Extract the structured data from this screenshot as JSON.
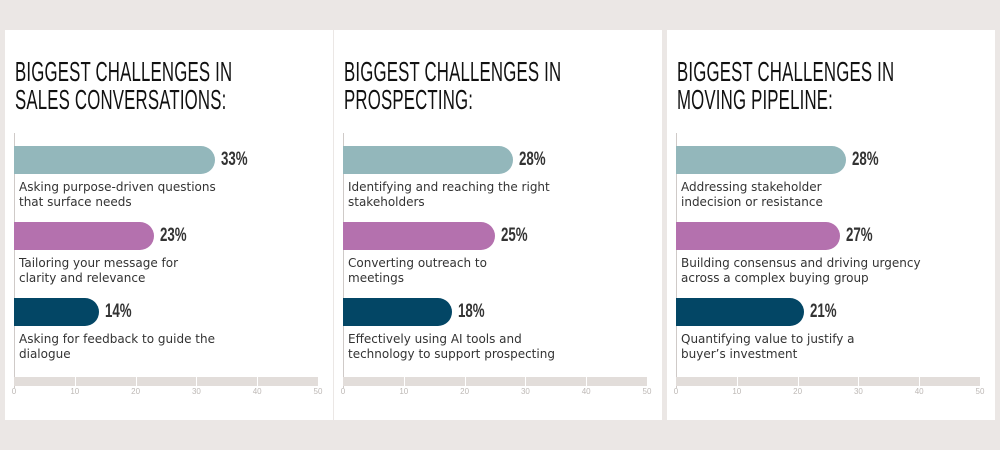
{
  "colors": {
    "background": "#ebe7e5",
    "panel": "#ffffff",
    "series": [
      "#93b7bb",
      "#b471ae",
      "#034665"
    ]
  },
  "chart_data": [
    {
      "type": "bar",
      "orientation": "horizontal",
      "title": [
        "BIGGEST CHALLENGES IN",
        "SALES CONVERSATIONS:"
      ],
      "categories": [
        "Asking purpose-driven questions that surface needs",
        "Tailoring your message for clarity and relevance",
        "Asking for feedback to guide the dialogue"
      ],
      "values": [
        33,
        23,
        14
      ],
      "data_labels": [
        "33%",
        "23%",
        "14%"
      ],
      "xlim": [
        0,
        50
      ],
      "xticks": [
        "0",
        "10",
        "20",
        "30",
        "40",
        "50"
      ]
    },
    {
      "type": "bar",
      "orientation": "horizontal",
      "title": [
        "BIGGEST CHALLENGES IN",
        "PROSPECTING:"
      ],
      "categories": [
        "Identifying and reaching the right stakeholders",
        "Converting outreach to meetings",
        "Effectively using AI tools and technology to support prospecting"
      ],
      "values": [
        28,
        25,
        18
      ],
      "data_labels": [
        "28%",
        "25%",
        "18%"
      ],
      "xlim": [
        0,
        50
      ],
      "xticks": [
        "0",
        "10",
        "20",
        "30",
        "40",
        "50"
      ]
    },
    {
      "type": "bar",
      "orientation": "horizontal",
      "title": [
        "BIGGEST CHALLENGES IN",
        "MOVING PIPELINE:"
      ],
      "categories": [
        "Addressing stakeholder indecision or resistance",
        "Building consensus and driving urgency across a complex buying group",
        "Quantifying value to justify a buyer’s investment"
      ],
      "values": [
        28,
        27,
        21
      ],
      "data_labels": [
        "28%",
        "27%",
        "21%"
      ],
      "xlim": [
        0,
        50
      ],
      "xticks": [
        "0",
        "10",
        "20",
        "30",
        "40",
        "50"
      ]
    }
  ]
}
